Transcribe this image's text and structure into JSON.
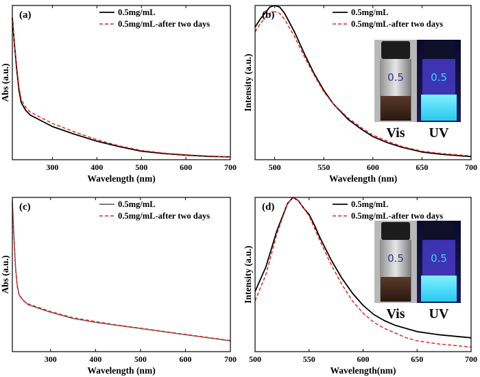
{
  "figure": {
    "colors": {
      "solid": "#000000",
      "dashed": "#e8231c",
      "dashed_gray": "#555555",
      "uv_glow": "#39d6ff"
    }
  },
  "chart_data": [
    {
      "panel": "(a)",
      "type": "line",
      "xlabel": "Wavelength (nm)",
      "ylabel": "Abs (a.u.)",
      "xlim": [
        210,
        700
      ],
      "ylim": [
        0,
        1
      ],
      "xticks": [
        300,
        400,
        500,
        600,
        700
      ],
      "series": [
        {
          "name": "0.5mg/mL",
          "style": "solid",
          "x": [
            210,
            215,
            220,
            225,
            230,
            240,
            250,
            270,
            300,
            350,
            400,
            450,
            500,
            550,
            600,
            650,
            700
          ],
          "y": [
            0.92,
            0.74,
            0.58,
            0.45,
            0.37,
            0.32,
            0.29,
            0.26,
            0.215,
            0.165,
            0.12,
            0.085,
            0.055,
            0.04,
            0.03,
            0.022,
            0.018
          ]
        },
        {
          "name": "0.5mg/mL-after two days",
          "style": "dashed",
          "x": [
            210,
            215,
            220,
            225,
            230,
            240,
            250,
            270,
            300,
            350,
            400,
            450,
            500,
            550,
            600,
            650,
            700
          ],
          "y": [
            0.91,
            0.75,
            0.6,
            0.47,
            0.39,
            0.34,
            0.31,
            0.28,
            0.235,
            0.18,
            0.13,
            0.09,
            0.06,
            0.043,
            0.032,
            0.024,
            0.019
          ]
        }
      ]
    },
    {
      "panel": "(b)",
      "type": "line",
      "xlabel": "Wavelength (nm)",
      "ylabel": "Intensity (a.u.)",
      "xlim": [
        480,
        700
      ],
      "ylim": [
        0,
        1
      ],
      "xticks": [
        500,
        550,
        600,
        650,
        700
      ],
      "photo_labels": [
        "Vis",
        "UV"
      ],
      "vial_label": "0.5",
      "series": [
        {
          "name": "0.5mg/mL",
          "style": "solid",
          "x": [
            480,
            485,
            490,
            495,
            500,
            505,
            510,
            520,
            530,
            540,
            550,
            560,
            575,
            590,
            600,
            615,
            630,
            650,
            670,
            700
          ],
          "y": [
            0.86,
            0.91,
            0.95,
            0.99,
            1.0,
            0.99,
            0.95,
            0.83,
            0.69,
            0.56,
            0.45,
            0.36,
            0.26,
            0.19,
            0.15,
            0.11,
            0.08,
            0.05,
            0.035,
            0.02
          ]
        },
        {
          "name": "0.5mg/mL-after two days",
          "style": "dashed",
          "x": [
            480,
            485,
            490,
            495,
            500,
            505,
            510,
            520,
            530,
            540,
            550,
            560,
            575,
            590,
            600,
            615,
            630,
            650,
            670,
            700
          ],
          "y": [
            0.83,
            0.88,
            0.92,
            0.95,
            0.96,
            0.95,
            0.91,
            0.8,
            0.67,
            0.55,
            0.44,
            0.36,
            0.27,
            0.2,
            0.16,
            0.12,
            0.085,
            0.055,
            0.04,
            0.025
          ]
        }
      ]
    },
    {
      "panel": "(c)",
      "type": "line",
      "xlabel": "Wavelength (nm)",
      "ylabel": "Abs (a.u.)",
      "xlim": [
        215,
        700
      ],
      "ylim": [
        0,
        1
      ],
      "xticks": [
        300,
        400,
        500,
        600,
        700
      ],
      "series": [
        {
          "name": "0.5mg/mL",
          "style": "solid-gray",
          "x": [
            215,
            218,
            222,
            226,
            230,
            240,
            250,
            270,
            300,
            350,
            400,
            450,
            500,
            550,
            600,
            650,
            700
          ],
          "y": [
            0.98,
            0.78,
            0.55,
            0.43,
            0.37,
            0.33,
            0.305,
            0.285,
            0.255,
            0.215,
            0.19,
            0.17,
            0.15,
            0.13,
            0.11,
            0.09,
            0.07
          ]
        },
        {
          "name": "0.5mg/mL-after two days",
          "style": "dashed",
          "x": [
            215,
            218,
            222,
            226,
            230,
            240,
            250,
            270,
            300,
            350,
            400,
            450,
            500,
            550,
            600,
            650,
            700
          ],
          "y": [
            0.96,
            0.76,
            0.54,
            0.42,
            0.365,
            0.33,
            0.31,
            0.29,
            0.26,
            0.22,
            0.195,
            0.172,
            0.152,
            0.132,
            0.112,
            0.092,
            0.072
          ]
        }
      ]
    },
    {
      "panel": "(d)",
      "type": "line",
      "xlabel": "Wavelength(nm)",
      "ylabel": "Intensity (a.u.)",
      "xlim": [
        500,
        700
      ],
      "ylim": [
        0,
        1
      ],
      "xticks": [
        500,
        550,
        600,
        650,
        700
      ],
      "photo_labels": [
        "Vis",
        "UV"
      ],
      "vial_label": "0.5",
      "series": [
        {
          "name": "0.5mg/mL",
          "style": "solid",
          "x": [
            500,
            510,
            520,
            530,
            535,
            540,
            545,
            550,
            555,
            560,
            570,
            580,
            590,
            600,
            610,
            620,
            630,
            640,
            650,
            670,
            700
          ],
          "y": [
            0.39,
            0.55,
            0.78,
            0.96,
            1.0,
            0.98,
            0.93,
            0.89,
            0.82,
            0.74,
            0.6,
            0.48,
            0.38,
            0.3,
            0.24,
            0.2,
            0.17,
            0.15,
            0.13,
            0.11,
            0.09
          ]
        },
        {
          "name": "0.5mg/mL-after two days",
          "style": "dashed",
          "x": [
            500,
            510,
            520,
            530,
            535,
            540,
            545,
            550,
            555,
            560,
            570,
            580,
            590,
            600,
            610,
            620,
            630,
            640,
            650,
            670,
            700
          ],
          "y": [
            0.33,
            0.5,
            0.76,
            0.96,
            1.0,
            0.98,
            0.93,
            0.88,
            0.8,
            0.72,
            0.57,
            0.44,
            0.33,
            0.25,
            0.19,
            0.15,
            0.12,
            0.09,
            0.07,
            0.05,
            0.03
          ]
        }
      ]
    }
  ]
}
